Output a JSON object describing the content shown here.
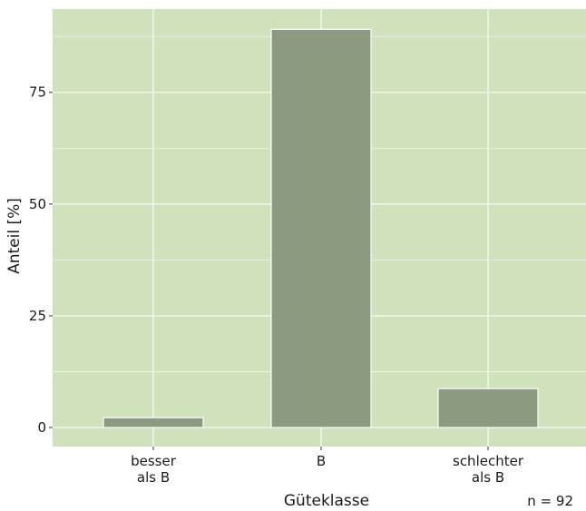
{
  "chart_data": {
    "type": "bar",
    "categories": [
      [
        "besser",
        "als B"
      ],
      [
        "B"
      ],
      [
        "schlechter",
        "als B"
      ]
    ],
    "values": [
      2.2,
      89.1,
      8.7
    ],
    "xlabel": "Güteklasse",
    "ylabel": "Anteil [%]",
    "ylim": [
      0,
      92
    ],
    "yticks": [
      0,
      25,
      50,
      75
    ],
    "grid": true,
    "note": "n = 92",
    "colors": {
      "panel": "#cfe2bb",
      "bar": "#8c9a80",
      "bar_stroke": "#ffffff",
      "grid": "#ffffff"
    }
  }
}
